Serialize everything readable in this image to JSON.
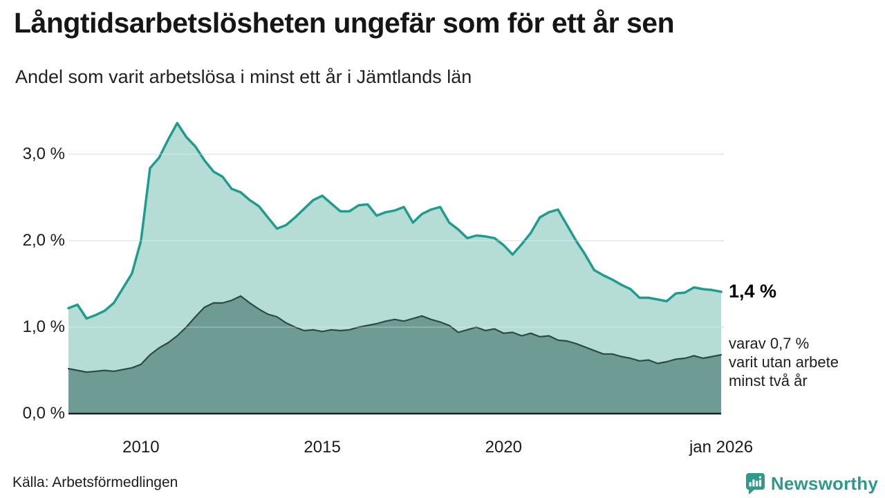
{
  "header": {
    "title": "Långtidsarbetslösheten ungefär som för ett år sen",
    "subtitle": "Andel som varit arbetslösa i minst ett år i Jämtlands län"
  },
  "chart_data": {
    "type": "area",
    "title": "Andel som varit arbetslösa i minst ett år i Jämtlands län",
    "x_start": 2008,
    "x_end": 2026,
    "x_step": 0.25,
    "ylim": [
      0,
      3.5
    ],
    "grid": "horizontal",
    "yticks": [
      {
        "value": 0,
        "label": "0,0 %"
      },
      {
        "value": 1,
        "label": "1,0 %"
      },
      {
        "value": 2,
        "label": "2,0 %"
      },
      {
        "value": 3,
        "label": "3,0 %"
      }
    ],
    "xticks": [
      {
        "value": 2010,
        "label": "2010"
      },
      {
        "value": 2015,
        "label": "2015"
      },
      {
        "value": 2020,
        "label": "2020"
      },
      {
        "value": 2026,
        "label": "jan 2026"
      }
    ],
    "series": [
      {
        "name": "minst ett år",
        "line_color": "#1f9c8e",
        "fill_color": "#b6dcd6",
        "line_width": 3.5,
        "values": [
          1.22,
          1.26,
          1.1,
          1.14,
          1.19,
          1.28,
          1.45,
          1.62,
          2.0,
          2.84,
          2.96,
          3.17,
          3.36,
          3.2,
          3.09,
          2.93,
          2.8,
          2.74,
          2.6,
          2.56,
          2.47,
          2.4,
          2.27,
          2.14,
          2.18,
          2.27,
          2.37,
          2.47,
          2.52,
          2.43,
          2.34,
          2.34,
          2.41,
          2.42,
          2.29,
          2.33,
          2.35,
          2.39,
          2.21,
          2.31,
          2.36,
          2.39,
          2.21,
          2.13,
          2.03,
          2.06,
          2.05,
          2.03,
          1.95,
          1.84,
          1.96,
          2.09,
          2.27,
          2.33,
          2.36,
          2.18,
          2.0,
          1.84,
          1.66,
          1.6,
          1.55,
          1.49,
          1.44,
          1.34,
          1.34,
          1.32,
          1.3,
          1.39,
          1.4,
          1.46,
          1.44,
          1.43,
          1.41
        ]
      },
      {
        "name": "minst två år",
        "line_color": "#2c4a45",
        "fill_color": "#6f9b95",
        "line_width": 2.2,
        "values": [
          0.52,
          0.5,
          0.48,
          0.49,
          0.5,
          0.49,
          0.51,
          0.53,
          0.57,
          0.68,
          0.76,
          0.82,
          0.9,
          1.0,
          1.12,
          1.23,
          1.28,
          1.28,
          1.31,
          1.36,
          1.28,
          1.21,
          1.15,
          1.12,
          1.05,
          1.0,
          0.96,
          0.97,
          0.95,
          0.97,
          0.96,
          0.97,
          1.0,
          1.02,
          1.04,
          1.07,
          1.09,
          1.07,
          1.1,
          1.13,
          1.09,
          1.06,
          1.02,
          0.94,
          0.97,
          1.0,
          0.96,
          0.98,
          0.93,
          0.94,
          0.9,
          0.93,
          0.89,
          0.9,
          0.85,
          0.84,
          0.81,
          0.77,
          0.73,
          0.69,
          0.69,
          0.66,
          0.64,
          0.61,
          0.62,
          0.58,
          0.6,
          0.63,
          0.64,
          0.67,
          0.64,
          0.66,
          0.68
        ]
      }
    ],
    "annotations": {
      "end_label": "1,4 %",
      "sub_lines": [
        "varav 0,7 %",
        "varit utan arbete",
        "minst två år"
      ]
    }
  },
  "footer": {
    "source": "Källa: Arbetsförmedlingen",
    "brand": "Newsworthy"
  },
  "colors": {
    "accent_teal": "#1f9c8e",
    "light_fill": "#b6dcd6",
    "dark_fill": "#6f9b95",
    "dark_line": "#2c4a45",
    "grid": "#dedede",
    "axis": "#1d1d1b",
    "brand_teal": "#2f998b"
  }
}
